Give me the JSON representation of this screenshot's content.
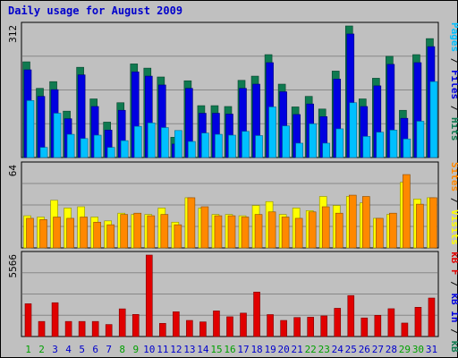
{
  "title": "Daily usage for August 2009",
  "colors": {
    "hits": "#0f7a50",
    "files": "#0000e0",
    "pages": "#00c0ff",
    "visits": "#ffff00",
    "sites": "#ff8800",
    "kbytes": "#e00000",
    "day_label": "#0000cc",
    "weekend_label": "#00a000"
  },
  "chart_data": [
    {
      "type": "bar",
      "panel": "hits-files-pages",
      "ymax_label": "312",
      "legend": [
        {
          "text": "Pages",
          "color": "#00c0ff"
        },
        {
          "text": " / ",
          "color": "#000000"
        },
        {
          "text": "Files",
          "color": "#0000e0"
        },
        {
          "text": " / ",
          "color": "#000000"
        },
        {
          "text": "Hits",
          "color": "#0f7a50"
        }
      ],
      "ylim": [
        0,
        312
      ],
      "categories": [
        "1",
        "2",
        "3",
        "4",
        "5",
        "6",
        "7",
        "8",
        "9",
        "10",
        "11",
        "12",
        "13",
        "14",
        "15",
        "16",
        "17",
        "18",
        "19",
        "20",
        "21",
        "22",
        "23",
        "24",
        "25",
        "26",
        "27",
        "28",
        "29",
        "30",
        "31"
      ],
      "series": [
        {
          "name": "Hits",
          "color": "#0f7a50",
          "values": [
            227,
            164,
            180,
            110,
            214,
            139,
            84,
            130,
            222,
            212,
            191,
            48,
            182,
            123,
            123,
            121,
            183,
            193,
            244,
            174,
            120,
            145,
            115,
            205,
            312,
            139,
            188,
            240,
            112,
            244,
            282
          ]
        },
        {
          "name": "Files",
          "color": "#0000e0",
          "values": [
            208,
            145,
            161,
            92,
            196,
            121,
            65,
            112,
            203,
            193,
            172,
            32,
            164,
            105,
            105,
            103,
            164,
            174,
            225,
            156,
            102,
            127,
            97,
            186,
            293,
            121,
            170,
            221,
            93,
            225,
            263
          ]
        },
        {
          "name": "Pages",
          "color": "#00c0ff",
          "values": [
            135,
            24,
            105,
            55,
            45,
            53,
            24,
            40,
            74,
            82,
            71,
            64,
            38,
            58,
            55,
            53,
            62,
            52,
            120,
            75,
            34,
            80,
            34,
            68,
            130,
            50,
            60,
            65,
            44,
            86,
            180
          ]
        }
      ]
    },
    {
      "type": "bar",
      "panel": "visits-sites",
      "ymax_label": "64",
      "legend": [
        {
          "text": "Sites",
          "color": "#ff8800"
        },
        {
          "text": " / ",
          "color": "#000000"
        },
        {
          "text": "Visits",
          "color": "#ffff00"
        }
      ],
      "ylim": [
        0,
        64
      ],
      "categories": [
        "1",
        "2",
        "3",
        "4",
        "5",
        "6",
        "7",
        "8",
        "9",
        "10",
        "11",
        "12",
        "13",
        "14",
        "15",
        "16",
        "17",
        "18",
        "19",
        "20",
        "21",
        "22",
        "23",
        "24",
        "25",
        "26",
        "27",
        "28",
        "29",
        "30",
        "31"
      ],
      "series": [
        {
          "name": "Visits",
          "color": "#ffff00",
          "values": [
            25,
            24,
            37,
            31,
            32,
            24,
            21,
            27,
            26,
            26,
            31,
            20,
            39,
            31,
            26,
            26,
            25,
            33,
            36,
            26,
            31,
            29,
            40,
            33,
            40,
            35,
            23,
            26,
            51,
            38,
            39
          ]
        },
        {
          "name": "Sites",
          "color": "#ff8800",
          "values": [
            23,
            22,
            24,
            23,
            24,
            20,
            18,
            26,
            27,
            25,
            26,
            18,
            39,
            32,
            25,
            25,
            24,
            26,
            28,
            24,
            23,
            28,
            32,
            27,
            41,
            40,
            23,
            27,
            57,
            34,
            39
          ]
        }
      ]
    },
    {
      "type": "bar",
      "panel": "kbytes",
      "ymax_label": "5566",
      "legend": [
        {
          "text": "kB F",
          "color": "#e00000"
        },
        {
          "text": " / ",
          "color": "#000000"
        },
        {
          "text": "kB In",
          "color": "#0000e0"
        },
        {
          "text": " / ",
          "color": "#000000"
        },
        {
          "text": "kB Out",
          "color": "#0f7a50"
        }
      ],
      "ylim": [
        0,
        5566
      ],
      "categories": [
        "1",
        "2",
        "3",
        "4",
        "5",
        "6",
        "7",
        "8",
        "9",
        "10",
        "11",
        "12",
        "13",
        "14",
        "15",
        "16",
        "17",
        "18",
        "19",
        "20",
        "21",
        "22",
        "23",
        "24",
        "25",
        "26",
        "27",
        "28",
        "29",
        "30",
        "31"
      ],
      "series": [
        {
          "name": "kB F",
          "color": "#e00000",
          "values": [
            2240,
            1030,
            2310,
            1030,
            1030,
            1030,
            820,
            1890,
            1510,
            5566,
            900,
            1690,
            1100,
            1000,
            1750,
            1350,
            1600,
            3040,
            1500,
            1100,
            1300,
            1320,
            1410,
            1930,
            2800,
            1270,
            1450,
            1900,
            920,
            2000,
            2630
          ]
        }
      ]
    }
  ]
}
